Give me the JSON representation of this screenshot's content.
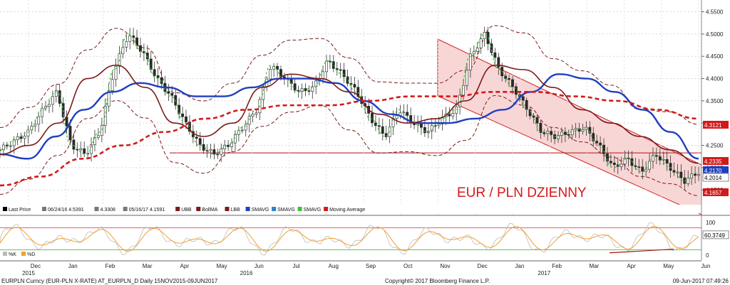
{
  "chart_data": {
    "type": "line",
    "annotation": "EUR / PLN DZIENNY",
    "ylim": [
      4.12,
      4.57
    ],
    "y_ticks": [
      "4.5500",
      "4.5000",
      "4.4500",
      "4.4000",
      "4.3500",
      "4.3000",
      "4.2500",
      "4.2000",
      "4.1500"
    ],
    "x_axis": {
      "months": [
        "Dec",
        "Jan",
        "Feb",
        "Mar",
        "Apr",
        "May",
        "Jun",
        "Jul",
        "Aug",
        "Sep",
        "Oct",
        "Nov",
        "Dec",
        "Jan",
        "Feb",
        "Mar",
        "Apr",
        "May",
        "Jun"
      ],
      "years": [
        "2015",
        "2016",
        "2017"
      ]
    },
    "series": [
      {
        "name": "Last Price",
        "kind": "ohlc",
        "values": [
          4.24,
          4.26,
          4.28,
          4.33,
          4.37,
          4.25,
          4.23,
          4.28,
          4.42,
          4.5,
          4.46,
          4.4,
          4.36,
          4.3,
          4.25,
          4.23,
          4.25,
          4.29,
          4.33,
          4.43,
          4.4,
          4.37,
          4.38,
          4.44,
          4.41,
          4.37,
          4.31,
          4.27,
          4.33,
          4.3,
          4.28,
          4.31,
          4.33,
          4.45,
          4.5,
          4.42,
          4.38,
          4.33,
          4.28,
          4.27,
          4.28,
          4.29,
          4.25,
          4.2,
          4.22,
          4.19,
          4.23,
          4.2,
          4.17,
          4.19
        ]
      },
      {
        "name": "SMAVG",
        "kind": "line",
        "color": "#1f3fbf",
        "values": [
          4.23,
          4.22,
          4.27,
          4.33,
          4.37,
          4.39,
          4.38,
          4.36,
          4.36,
          4.38,
          4.4,
          4.4,
          4.39,
          4.35,
          4.32,
          4.3,
          4.3,
          4.31,
          4.33,
          4.37,
          4.41,
          4.4,
          4.37,
          4.33,
          4.28,
          4.22
        ]
      },
      {
        "name": "BollMA",
        "kind": "line",
        "color": "#7a1a1a",
        "values": [
          4.23,
          4.25,
          4.3,
          4.4,
          4.43,
          4.38,
          4.3,
          4.27,
          4.3,
          4.38,
          4.41,
          4.4,
          4.37,
          4.32,
          4.3,
          4.31,
          4.35,
          4.43,
          4.42,
          4.38,
          4.33,
          4.3,
          4.27,
          4.24,
          4.21
        ]
      },
      {
        "name": "Moving Average",
        "kind": "dashed-line",
        "color": "#d11a1a",
        "values": [
          4.16,
          4.18,
          4.22,
          4.25,
          4.28,
          4.31,
          4.33,
          4.34,
          4.34,
          4.35,
          4.36,
          4.36,
          4.37,
          4.37,
          4.36,
          4.35,
          4.33,
          4.31
        ]
      }
    ],
    "last_values": [
      {
        "label": "4.3121",
        "color": "#d11a1a"
      },
      {
        "label": "4.2335",
        "color": "#d11a1a"
      },
      {
        "label": "4.2170",
        "color": "#1f3fbf"
      },
      {
        "label": "4.2014",
        "color": "#ffffff"
      },
      {
        "label": "4.1657",
        "color": "#d11a1a"
      }
    ],
    "horizontal_level": 4.233,
    "legend": {
      "items": [
        {
          "label": "Last Price",
          "color": "#000000"
        },
        {
          "label": "06/24/16 4.5391",
          "color": "#777777"
        },
        {
          "label": "4.3308",
          "color": "#777777"
        },
        {
          "label": "05/16/17 4.1591",
          "color": "#777777"
        },
        {
          "label": "UBB",
          "color": "#7a1a1a"
        },
        {
          "label": "BollMA",
          "color": "#7a1a1a"
        },
        {
          "label": "LBB",
          "color": "#7a1a1a"
        },
        {
          "label": "SMAVG",
          "color": "#1f3fbf"
        },
        {
          "label": "SMAVG",
          "color": "#2b7fd6"
        },
        {
          "label": "SMAVG",
          "color": "#39c239"
        },
        {
          "label": "Moving Average",
          "color": "#d11a1a"
        }
      ]
    },
    "oscillator": {
      "last": "60.3749",
      "y_ticks": [
        "100",
        "0"
      ],
      "legend": [
        {
          "label": "%K",
          "color": "#bbbbbb"
        },
        {
          "label": "%D",
          "color": "#f0a030"
        }
      ]
    }
  },
  "footer": {
    "left": "EURPLN Curncy (EUR-PLN X-RATE) AT_EURPLN_D  Daily 15NOV2015-09JUN2017",
    "center": "Copyright© 2017 Bloomberg Finance L.P.",
    "right": "09-Jun-2017 07:49:26"
  }
}
